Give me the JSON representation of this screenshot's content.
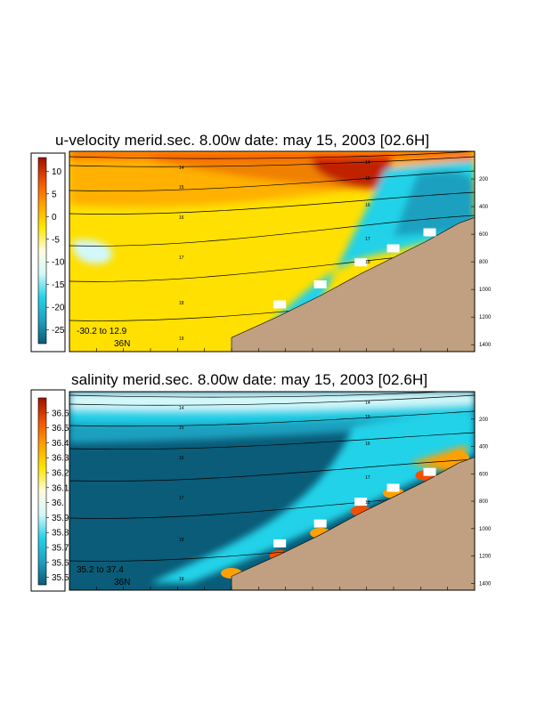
{
  "chart_data": [
    {
      "type": "heatmap",
      "title": "u-velocity merid.sec.  8.00w   date: may 15, 2003   [02.6H]",
      "colorbar": {
        "ticks": [
          "10",
          "5",
          "0",
          "-5",
          "-10",
          "-15",
          "-20",
          "-25"
        ],
        "tick_values": [
          10,
          5,
          0,
          -5,
          -10,
          -15,
          -20,
          -25
        ],
        "range": [
          -28,
          13
        ],
        "colors": [
          "#0a5c78",
          "#1fa0c0",
          "#22d2e8",
          "#d2f8fa",
          "#fffbe0",
          "#ffe600",
          "#ffa000",
          "#f05000",
          "#a01000"
        ]
      },
      "depth_ticks": [
        "200",
        "400",
        "600",
        "800",
        "1000",
        "1200",
        "1400"
      ],
      "depth_values": [
        200,
        400,
        600,
        800,
        1000,
        1200,
        1400
      ],
      "depth_range": [
        0,
        1450
      ],
      "range_label": "-30.2 to  12.9",
      "section_label": "36N",
      "contour_labels": [
        "14",
        "15",
        "16",
        "17",
        "18",
        "19"
      ],
      "contour_labels_east": [
        "14",
        "15",
        "16",
        "17",
        "18"
      ]
    },
    {
      "type": "heatmap",
      "title": "salinity merid.sec.  8.00w   date: may 15, 2003   [02.6H]",
      "colorbar": {
        "ticks": [
          "36.6",
          "36.5",
          "36.4",
          "36.3",
          "36.2",
          "36.1",
          "36.",
          "35.9",
          "35.8",
          "35.7",
          "35.6",
          "35.5"
        ],
        "tick_values": [
          36.6,
          36.5,
          36.4,
          36.3,
          36.2,
          36.1,
          36.0,
          35.9,
          35.8,
          35.7,
          35.6,
          35.5
        ],
        "range": [
          35.45,
          36.7
        ],
        "colors": [
          "#0a5c78",
          "#1fa0c0",
          "#22d2e8",
          "#d2f8fa",
          "#fffbe0",
          "#ffe600",
          "#ffa000",
          "#f05000",
          "#a01000"
        ]
      },
      "depth_ticks": [
        "200",
        "400",
        "600",
        "800",
        "1000",
        "1200",
        "1400"
      ],
      "depth_values": [
        200,
        400,
        600,
        800,
        1000,
        1200,
        1400
      ],
      "depth_range": [
        0,
        1450
      ],
      "range_label": "35.2 to  37.4",
      "section_label": "36N",
      "contour_labels": [
        "14",
        "15",
        "16",
        "17",
        "18",
        "19"
      ],
      "contour_labels_east": [
        "14",
        "15",
        "16",
        "17",
        "18"
      ]
    }
  ],
  "colors": {
    "seafloor": "#c0a080",
    "frame": "#000000",
    "background": "#ffffff"
  }
}
